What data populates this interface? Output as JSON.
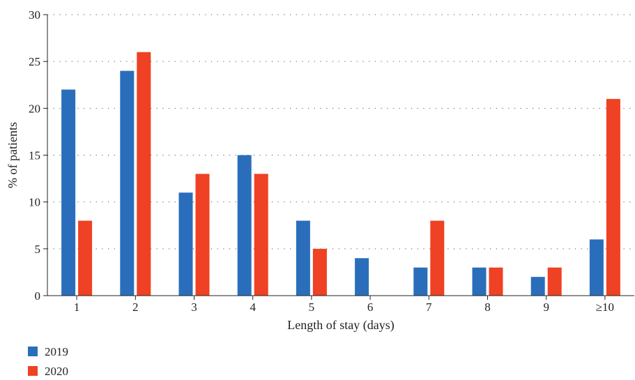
{
  "chart_data": {
    "type": "bar",
    "title": "",
    "xlabel": "Length of stay (days)",
    "ylabel": "% of patients",
    "categories": [
      "1",
      "2",
      "3",
      "4",
      "5",
      "6",
      "7",
      "8",
      "9",
      "≥10"
    ],
    "series": [
      {
        "name": "2019",
        "color": "#2a6ebb",
        "values": [
          22,
          24,
          11,
          15,
          8,
          4,
          3,
          3,
          2,
          6
        ]
      },
      {
        "name": "2020",
        "color": "#ef4123",
        "values": [
          8,
          26,
          13,
          13,
          5,
          0,
          8,
          3,
          3,
          21
        ]
      }
    ],
    "ylim": [
      0,
      30
    ],
    "yticks": [
      0,
      5,
      10,
      15,
      20,
      25,
      30
    ],
    "grid": "horizontal dotted",
    "legend_position": "bottom-left"
  }
}
